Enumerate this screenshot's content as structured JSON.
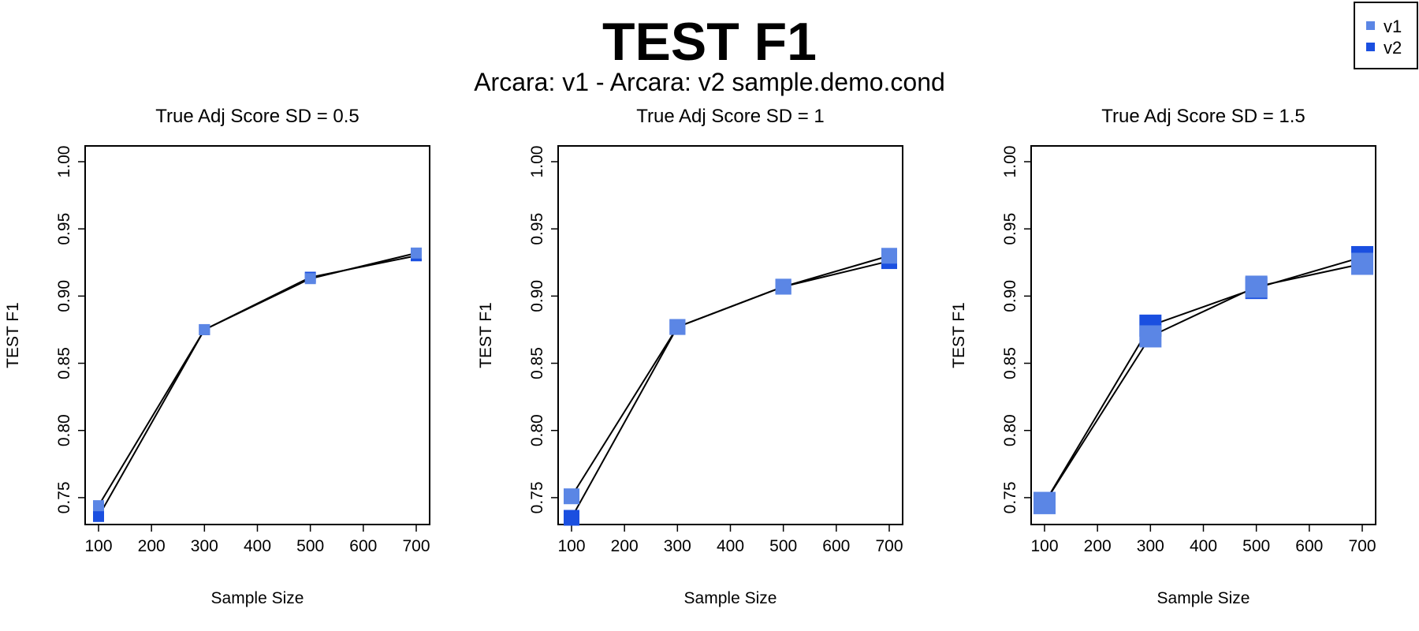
{
  "title": "TEST F1",
  "subtitle": "Arcara: v1 - Arcara: v2 sample.demo.cond",
  "legend": {
    "position": "top-right",
    "items": [
      {
        "label": "v1",
        "color": "#5b86e5"
      },
      {
        "label": "v2",
        "color": "#1a4fe0"
      }
    ]
  },
  "chart_data": [
    {
      "type": "line",
      "title": "True Adj Score SD = 0.5",
      "xlabel": "Sample Size",
      "ylabel": "TEST F1",
      "x_ticks": [
        "100",
        "200",
        "300",
        "400",
        "500",
        "600",
        "700"
      ],
      "y_ticks": [
        "0.75",
        "0.80",
        "0.85",
        "0.90",
        "0.95",
        "1.00"
      ],
      "xlim": [
        100,
        700
      ],
      "ylim": [
        0.73,
        1.0
      ],
      "marker_size": 1,
      "x": [
        100,
        300,
        500,
        700
      ],
      "series": [
        {
          "name": "v1",
          "values": [
            0.744,
            0.875,
            0.913,
            0.932
          ]
        },
        {
          "name": "v2",
          "values": [
            0.736,
            0.875,
            0.914,
            0.93
          ]
        }
      ]
    },
    {
      "type": "line",
      "title": "True Adj Score SD = 1",
      "xlabel": "Sample Size",
      "ylabel": "TEST F1",
      "x_ticks": [
        "100",
        "200",
        "300",
        "400",
        "500",
        "600",
        "700"
      ],
      "y_ticks": [
        "0.75",
        "0.80",
        "0.85",
        "0.90",
        "0.95",
        "1.00"
      ],
      "xlim": [
        100,
        700
      ],
      "ylim": [
        0.73,
        1.0
      ],
      "marker_size": 2,
      "x": [
        100,
        300,
        500,
        700
      ],
      "series": [
        {
          "name": "v1",
          "values": [
            0.751,
            0.877,
            0.907,
            0.93
          ]
        },
        {
          "name": "v2",
          "values": [
            0.735,
            0.877,
            0.907,
            0.926
          ]
        }
      ]
    },
    {
      "type": "line",
      "title": "True Adj Score SD = 1.5",
      "xlabel": "Sample Size",
      "ylabel": "TEST F1",
      "x_ticks": [
        "100",
        "200",
        "300",
        "400",
        "500",
        "600",
        "700"
      ],
      "y_ticks": [
        "0.75",
        "0.80",
        "0.85",
        "0.90",
        "0.95",
        "1.00"
      ],
      "xlim": [
        100,
        700
      ],
      "ylim": [
        0.73,
        1.0
      ],
      "marker_size": 3,
      "x": [
        100,
        300,
        500,
        700
      ],
      "series": [
        {
          "name": "v1",
          "values": [
            0.746,
            0.87,
            0.907,
            0.924
          ]
        },
        {
          "name": "v2",
          "values": [
            0.746,
            0.878,
            0.906,
            0.929
          ]
        }
      ]
    }
  ]
}
